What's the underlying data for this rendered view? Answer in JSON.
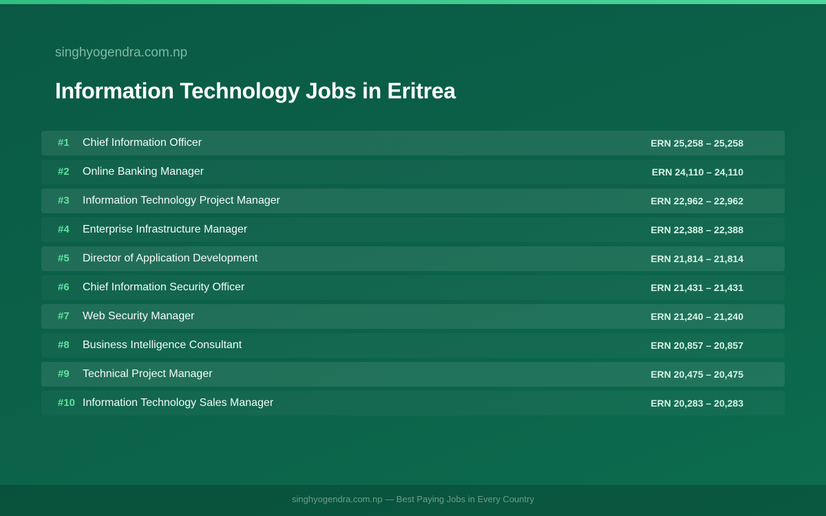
{
  "header": {
    "site": "singhyogendra.com.np",
    "title": "Information Technology Jobs in Eritrea"
  },
  "table": {
    "rows": [
      [
        "#1",
        "Chief Information Officer",
        "ERN 25,258 – 25,258"
      ],
      [
        "#2",
        "Online Banking Manager",
        "ERN 24,110 – 24,110"
      ],
      [
        "#3",
        "Information Technology Project Manager",
        "ERN 22,962 – 22,962"
      ],
      [
        "#4",
        "Enterprise Infrastructure Manager",
        "ERN 22,388 – 22,388"
      ],
      [
        "#5",
        "Director of Application Development",
        "ERN 21,814 – 21,814"
      ],
      [
        "#6",
        "Chief Information Security Officer",
        "ERN 21,431 – 21,431"
      ],
      [
        "#7",
        "Web Security Manager",
        "ERN 21,240 – 21,240"
      ],
      [
        "#8",
        "Business Intelligence Consultant",
        "ERN 20,857 – 20,857"
      ],
      [
        "#9",
        "Technical Project Manager",
        "ERN 20,475 – 20,475"
      ],
      [
        "#10",
        "Information Technology Sales Manager",
        "ERN 20,283 – 20,283"
      ]
    ]
  },
  "footer": {
    "text": "singhyogendra.com.np — Best Paying Jobs in Every Country"
  }
}
